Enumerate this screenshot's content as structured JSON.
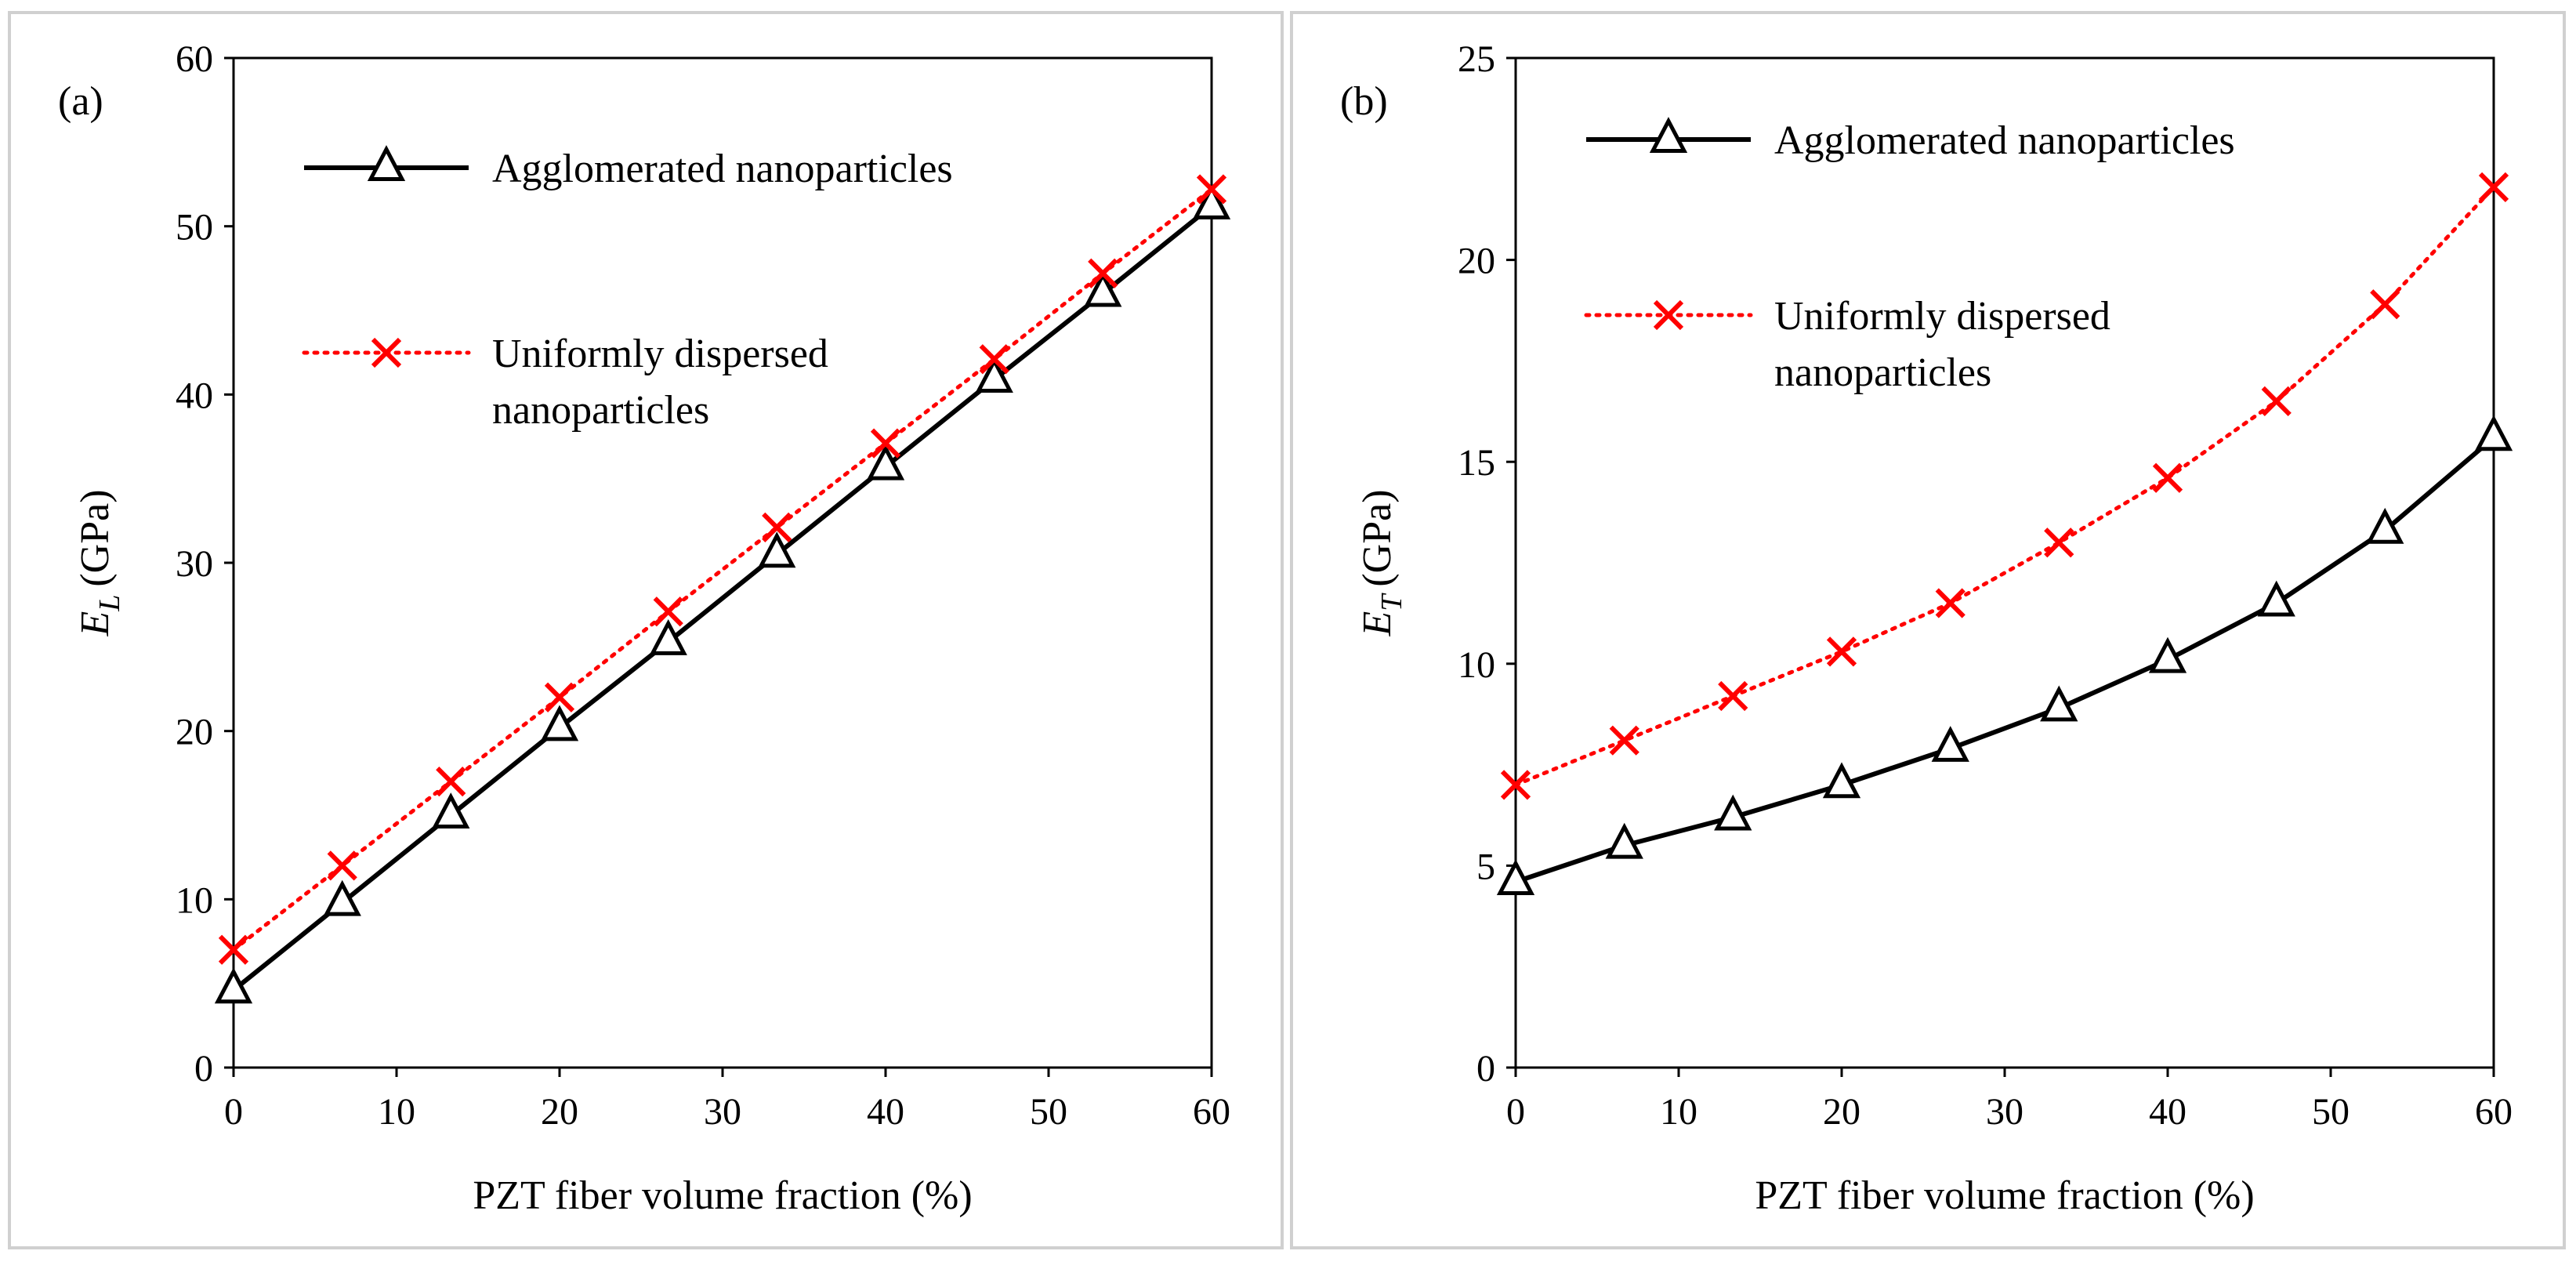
{
  "chart_data": [
    {
      "type": "line",
      "panel_label": "(a)",
      "panel_letter": "a",
      "xlabel": "PZT fiber volume fraction (%)",
      "ylabel_main": "E",
      "ylabel_sub": "L",
      "ylabel_unit": "(GPa)",
      "xlim": [
        0,
        60
      ],
      "ylim": [
        0,
        60
      ],
      "xticks": [
        0,
        10,
        20,
        30,
        40,
        50,
        60
      ],
      "yticks": [
        0,
        10,
        20,
        30,
        40,
        50,
        60
      ],
      "grid": false,
      "legend_position": "top-left",
      "x": [
        0,
        6.67,
        13.33,
        20,
        26.67,
        33.33,
        40,
        46.67,
        53.33,
        60
      ],
      "series": [
        {
          "name": "Agglomerated nanoparticles",
          "legend_lines": [
            "Agglomerated nanoparticles"
          ],
          "color": "#000000",
          "marker": "triangle",
          "line_style": "solid",
          "values": [
            4.6,
            9.8,
            15.0,
            20.2,
            25.3,
            30.5,
            35.7,
            40.9,
            46.0,
            51.2
          ]
        },
        {
          "name": "Uniformly dispersed nanoparticles",
          "legend_lines": [
            "Uniformly dispersed",
            "nanoparticles"
          ],
          "color": "#ff0000",
          "marker": "x",
          "line_style": "dotted",
          "values": [
            7.0,
            12.0,
            17.0,
            22.0,
            27.1,
            32.1,
            37.1,
            42.1,
            47.2,
            52.2
          ]
        }
      ]
    },
    {
      "type": "line",
      "panel_label": "(b)",
      "panel_letter": "b",
      "xlabel": "PZT fiber volume fraction (%)",
      "ylabel_main": "E",
      "ylabel_sub": "T",
      "ylabel_unit": "(GPa)",
      "xlim": [
        0,
        60
      ],
      "ylim": [
        0,
        25
      ],
      "xticks": [
        0,
        10,
        20,
        30,
        40,
        50,
        60
      ],
      "yticks": [
        0,
        5,
        10,
        15,
        20,
        25
      ],
      "grid": false,
      "legend_position": "top-left",
      "x": [
        0,
        6.67,
        13.33,
        20,
        26.67,
        33.33,
        40,
        46.67,
        53.33,
        60
      ],
      "series": [
        {
          "name": "Agglomerated nanoparticles",
          "legend_lines": [
            "Agglomerated nanoparticles"
          ],
          "color": "#000000",
          "marker": "triangle",
          "line_style": "solid",
          "values": [
            4.6,
            5.5,
            6.2,
            7.0,
            7.9,
            8.9,
            10.1,
            11.5,
            13.3,
            15.6
          ]
        },
        {
          "name": "Uniformly dispersed nanoparticles",
          "legend_lines": [
            "Uniformly dispersed",
            "nanoparticles"
          ],
          "color": "#ff0000",
          "marker": "x",
          "line_style": "dotted",
          "values": [
            7.0,
            8.1,
            9.2,
            10.3,
            11.5,
            13.0,
            14.6,
            16.5,
            18.9,
            21.8
          ]
        }
      ]
    }
  ]
}
